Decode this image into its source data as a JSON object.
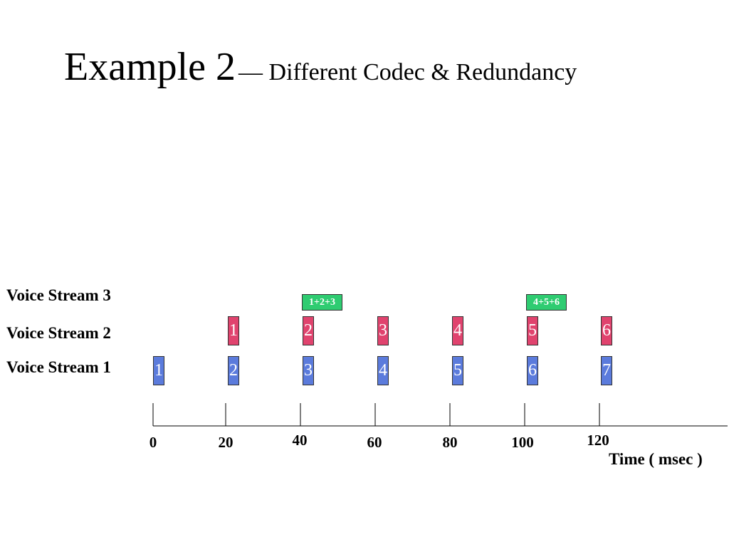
{
  "title": {
    "main": "Example 2",
    "sub": "— Different Codec & Redundancy"
  },
  "streams": [
    {
      "label": "Voice Stream 3"
    },
    {
      "label": "Voice Stream 2"
    },
    {
      "label": "Voice Stream 1"
    }
  ],
  "packets": {
    "stream1": [
      {
        "label": "1",
        "t": 0
      },
      {
        "label": "2",
        "t": 20
      },
      {
        "label": "3",
        "t": 40
      },
      {
        "label": "4",
        "t": 60
      },
      {
        "label": "5",
        "t": 80
      },
      {
        "label": "6",
        "t": 100
      },
      {
        "label": "7",
        "t": 120
      }
    ],
    "stream2": [
      {
        "label": "1",
        "t": 20
      },
      {
        "label": "2",
        "t": 40
      },
      {
        "label": "3",
        "t": 60
      },
      {
        "label": "4",
        "t": 80
      },
      {
        "label": "5",
        "t": 100
      },
      {
        "label": "6",
        "t": 120
      }
    ],
    "stream3": [
      {
        "label": "1+2+3",
        "t": 40
      },
      {
        "label": "4+5+6",
        "t": 100
      }
    ]
  },
  "axis": {
    "ticks": [
      "0",
      "20",
      "40",
      "60",
      "80",
      "100",
      "120"
    ],
    "label": "Time ( msec )"
  },
  "colors": {
    "stream1": "#5b7bdc",
    "stream2": "#e0436e",
    "stream3": "#2ecc71"
  }
}
